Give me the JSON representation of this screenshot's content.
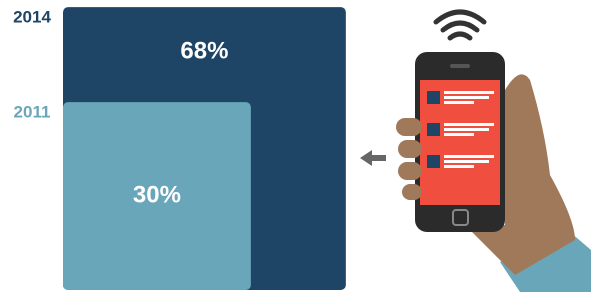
{
  "chart_data": {
    "type": "square",
    "categories": [
      "2014",
      "2011"
    ],
    "values": [
      68,
      30
    ],
    "value_labels": [
      "68%",
      "30%"
    ],
    "colors": [
      "#1f4566",
      "#6aa6ba"
    ]
  }
}
